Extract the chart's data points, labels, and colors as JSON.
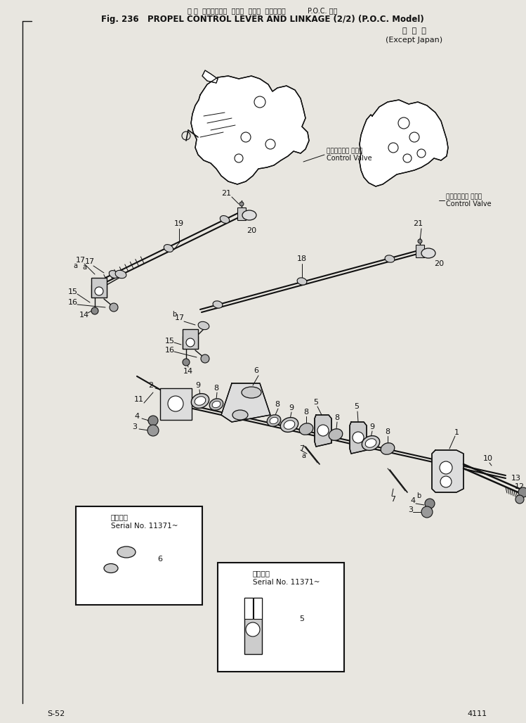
{
  "title_line1": "走 行  コントロール  レバー  および  リンケージ          P.O.C. 仕様",
  "title_line2": "Fig. 236   PROPEL CONTROL LEVER AND LINKAGE (2/2) (P.O.C. Model)",
  "title_line3": "海  外  向",
  "title_line4": "(Except Japan)",
  "bg_color": "#e8e6e0",
  "line_color": "#111111",
  "cv_label1_jp": "コントロール バルブ",
  "cv_label1_en": "Control Valve",
  "cv_label2_jp": "コントロール バルブ",
  "cv_label2_en": "Control Valve",
  "serial1_title": "適用号数",
  "serial1_sub": "Serial No. 11371~",
  "serial2_title": "適用号数",
  "serial2_sub": "Serial No. 11371~",
  "page_left": "S-52",
  "page_right": "4111"
}
